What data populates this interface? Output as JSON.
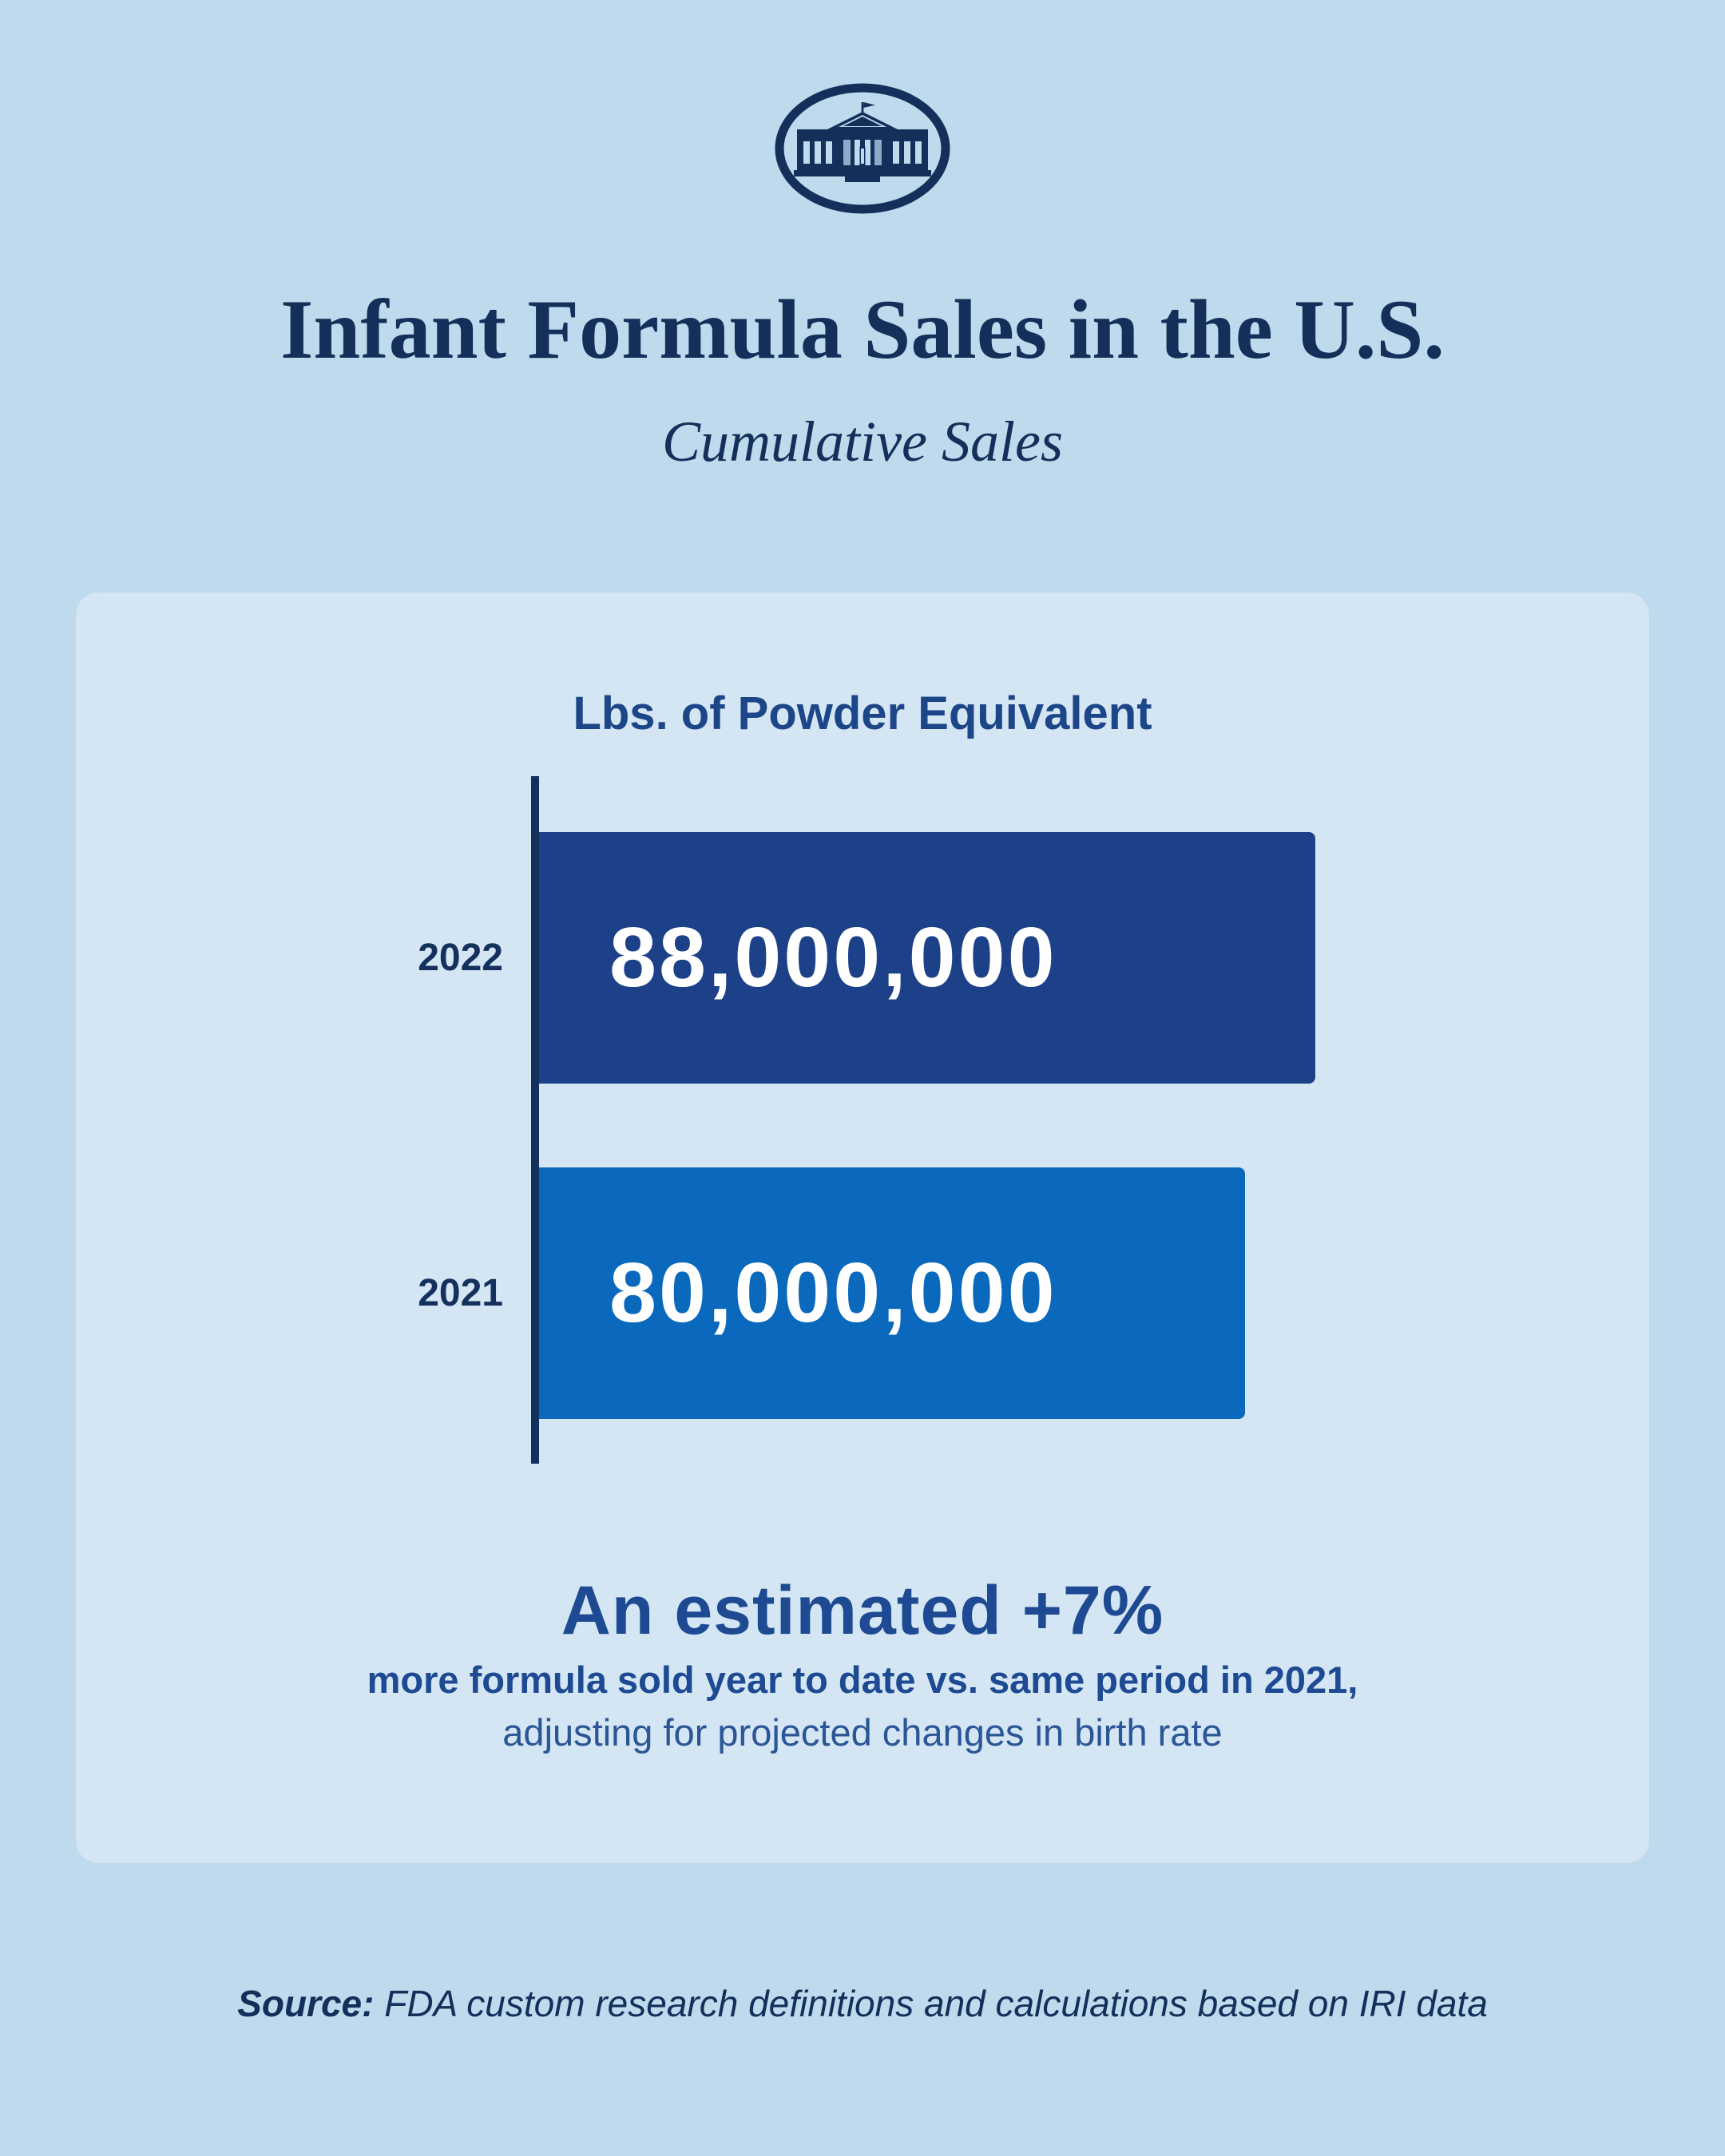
{
  "colors": {
    "background": "#bedaec",
    "panel": "#d4e5f3",
    "navy": "#132f5a",
    "medium_blue": "#1d4a92",
    "bar_2022": "#1c4189",
    "bar_2021": "#0a69bd",
    "bar_text": "#ffffff"
  },
  "header": {
    "title": "Infant Formula Sales in the U.S.",
    "subtitle": "Cumulative Sales"
  },
  "chart": {
    "axis_title": "Lbs. of Powder Equivalent",
    "bars": [
      {
        "year": "2022",
        "label": "88,000,000",
        "value": 88000000,
        "color": "#1c4189"
      },
      {
        "year": "2021",
        "label": "80,000,000",
        "value": 80000000,
        "color": "#0a69bd"
      }
    ]
  },
  "callout": {
    "headline": "An estimated +7%",
    "line1": "more formula sold year to date vs. same period in 2021,",
    "line2": "adjusting for projected changes in birth rate"
  },
  "source": {
    "label": "Source:",
    "text": " FDA custom research definitions and calculations based on IRI data"
  },
  "chart_data": {
    "type": "bar",
    "orientation": "horizontal",
    "title": "Infant Formula Sales in the U.S.",
    "subtitle": "Cumulative Sales",
    "axis_title": "Lbs. of Powder Equivalent",
    "categories": [
      "2022",
      "2021"
    ],
    "values": [
      88000000,
      80000000
    ],
    "data_labels": [
      "88,000,000",
      "80,000,000"
    ],
    "bar_colors": [
      "#1c4189",
      "#0a69bd"
    ],
    "xlim": [
      0,
      88000000
    ],
    "grid": false,
    "legend": false,
    "annotation": "An estimated +7% more formula sold year to date vs. same period in 2021, adjusting for projected changes in birth rate",
    "source": "FDA custom research definitions and calculations based on IRI data"
  }
}
